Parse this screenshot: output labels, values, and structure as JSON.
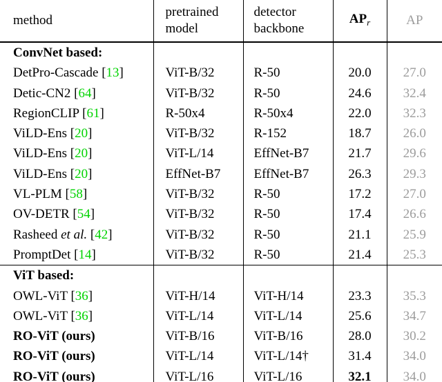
{
  "colors": {
    "citation_green": "#00d300",
    "muted_ap_gray": "#9c9c9c"
  },
  "citation_brackets": [
    "[",
    "]"
  ],
  "header": {
    "method": "method",
    "pretrained_line1": "pretrained",
    "pretrained_line2": "model",
    "detector_line1": "detector",
    "detector_line2": "backbone",
    "apr_main": "AP",
    "apr_sub": "r",
    "ap": "AP"
  },
  "sections": [
    {
      "label": "ConvNet based:",
      "rows": [
        {
          "name": "DetPro-Cascade",
          "cite": "13",
          "pretrained": "ViT-B/32",
          "backbone": "R-50",
          "apr": "20.0",
          "ap": "27.0"
        },
        {
          "name": "Detic-CN2",
          "cite": "64",
          "pretrained": "ViT-B/32",
          "backbone": "R-50",
          "apr": "24.6",
          "ap": "32.4"
        },
        {
          "name": "RegionCLIP",
          "cite": "61",
          "pretrained": "R-50x4",
          "backbone": "R-50x4",
          "apr": "22.0",
          "ap": "32.3"
        },
        {
          "name": "ViLD-Ens",
          "cite": "20",
          "pretrained": "ViT-B/32",
          "backbone": "R-152",
          "apr": "18.7",
          "ap": "26.0"
        },
        {
          "name": "ViLD-Ens",
          "cite": "20",
          "pretrained": "ViT-L/14",
          "backbone": "EffNet-B7",
          "apr": "21.7",
          "ap": "29.6"
        },
        {
          "name": "ViLD-Ens",
          "cite": "20",
          "pretrained": "EffNet-B7",
          "backbone": "EffNet-B7",
          "apr": "26.3",
          "ap": "29.3"
        },
        {
          "name": "VL-PLM",
          "cite": "58",
          "pretrained": "ViT-B/32",
          "backbone": "R-50",
          "apr": "17.2",
          "ap": "27.0"
        },
        {
          "name": "OV-DETR",
          "cite": "54",
          "pretrained": "ViT-B/32",
          "backbone": "R-50",
          "apr": "17.4",
          "ap": "26.6"
        },
        {
          "name": "Rasheed",
          "name_italic": "et al.",
          "cite": "42",
          "pretrained": "ViT-B/32",
          "backbone": "R-50",
          "apr": "21.1",
          "ap": "25.9"
        },
        {
          "name": "PromptDet",
          "cite": "14",
          "pretrained": "ViT-B/32",
          "backbone": "R-50",
          "apr": "21.4",
          "ap": "25.3"
        }
      ]
    },
    {
      "label": "ViT based:",
      "rows": [
        {
          "name": "OWL-ViT",
          "cite": "36",
          "pretrained": "ViT-H/14",
          "backbone": "ViT-H/14",
          "apr": "23.3",
          "ap": "35.3"
        },
        {
          "name": "OWL-ViT",
          "cite": "36",
          "pretrained": "ViT-L/14",
          "backbone": "ViT-L/14",
          "apr": "25.6",
          "ap": "34.7"
        },
        {
          "name": "RO-ViT (ours)",
          "bold": true,
          "pretrained": "ViT-B/16",
          "backbone": "ViT-B/16",
          "apr": "28.0",
          "ap": "30.2"
        },
        {
          "name": "RO-ViT (ours)",
          "bold": true,
          "pretrained": "ViT-L/14",
          "backbone": "ViT-L/14†",
          "apr": "31.4",
          "ap": "34.0"
        },
        {
          "name": "RO-ViT (ours)",
          "bold": true,
          "pretrained": "ViT-L/16",
          "backbone": "ViT-L/16",
          "apr": "32.1",
          "apr_bold": true,
          "ap": "34.0"
        }
      ]
    }
  ]
}
